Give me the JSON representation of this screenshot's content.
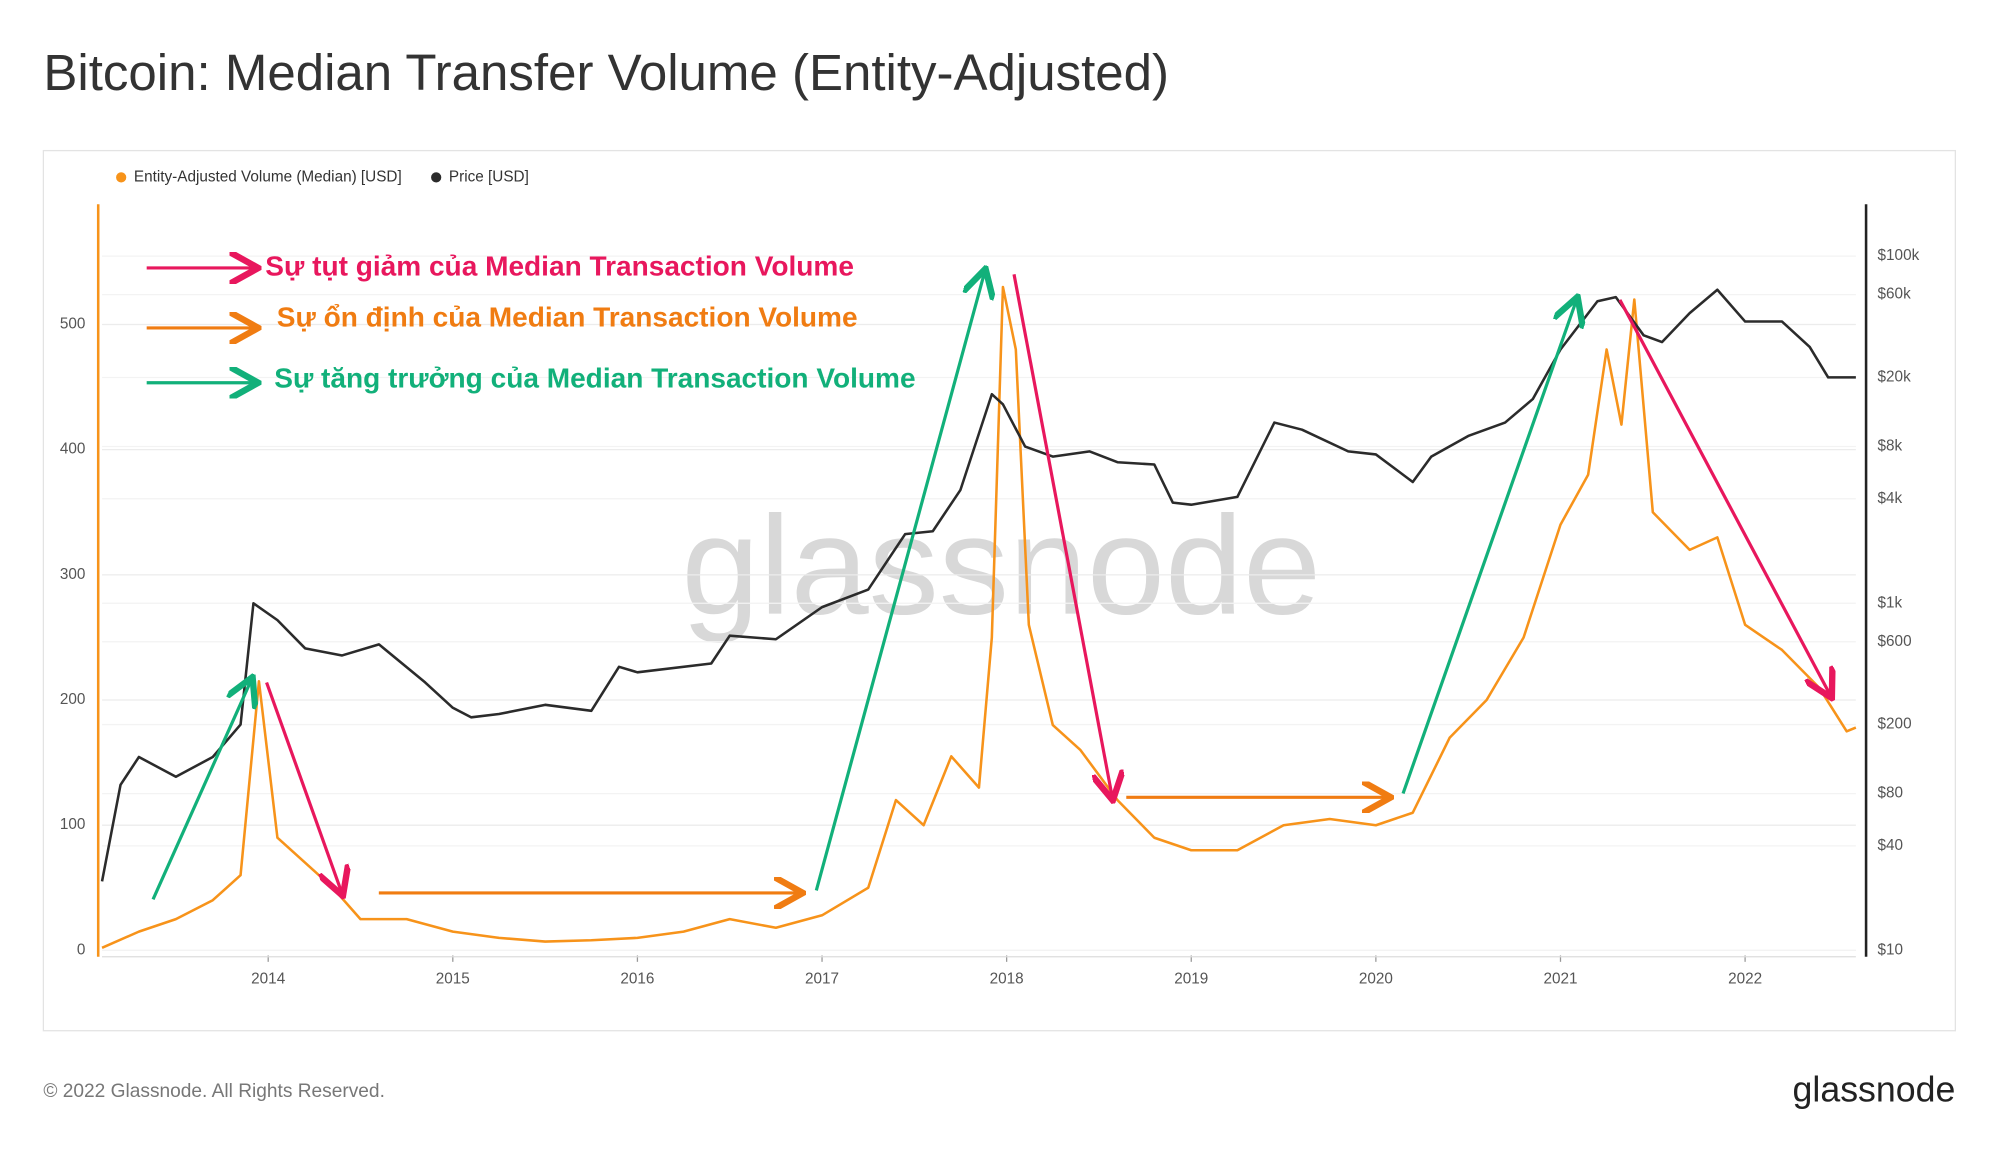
{
  "chart_data": {
    "type": "line",
    "title": "Bitcoin: Median Transfer Volume (Entity-Adjusted)",
    "watermark": "glassnode",
    "footer": "© 2022 Glassnode. All Rights Reserved.",
    "logo": "glassnode",
    "legend": "top-left",
    "grid": true,
    "y2_log": true,
    "xlim": [
      2013.1,
      2022.6
    ],
    "xticks": [
      2014,
      2015,
      2016,
      2017,
      2018,
      2019,
      2020,
      2021,
      2022
    ],
    "ylim": [
      0,
      590
    ],
    "yticks": [
      0,
      100,
      200,
      300,
      400,
      500
    ],
    "y2lim": [
      10,
      180000
    ],
    "y2ticks": [
      {
        "value": 10,
        "label": "$10"
      },
      {
        "value": 40,
        "label": "$40"
      },
      {
        "value": 80,
        "label": "$80"
      },
      {
        "value": 200,
        "label": "$200"
      },
      {
        "value": 600,
        "label": "$600"
      },
      {
        "value": 1000,
        "label": "$1k"
      },
      {
        "value": 4000,
        "label": "$4k"
      },
      {
        "value": 8000,
        "label": "$8k"
      },
      {
        "value": 20000,
        "label": "$20k"
      },
      {
        "value": 60000,
        "label": "$60k"
      },
      {
        "value": 100000,
        "label": "$100k"
      }
    ],
    "series": [
      {
        "name": "Entity-Adjusted Volume (Median) [USD]",
        "color": "#f7931a",
        "x": [
          2013.1,
          2013.3,
          2013.5,
          2013.7,
          2013.85,
          2013.95,
          2014.05,
          2014.2,
          2014.35,
          2014.5,
          2014.75,
          2015.0,
          2015.25,
          2015.5,
          2015.75,
          2016.0,
          2016.25,
          2016.5,
          2016.75,
          2017.0,
          2017.25,
          2017.4,
          2017.55,
          2017.7,
          2017.85,
          2017.92,
          2017.98,
          2018.05,
          2018.12,
          2018.25,
          2018.4,
          2018.6,
          2018.8,
          2019.0,
          2019.25,
          2019.5,
          2019.75,
          2020.0,
          2020.2,
          2020.4,
          2020.6,
          2020.8,
          2021.0,
          2021.15,
          2021.25,
          2021.33,
          2021.4,
          2021.5,
          2021.7,
          2021.85,
          2022.0,
          2022.2,
          2022.4,
          2022.55,
          2022.6
        ],
        "values": [
          2,
          15,
          25,
          40,
          60,
          215,
          90,
          70,
          50,
          25,
          25,
          15,
          10,
          7,
          8,
          10,
          15,
          25,
          18,
          28,
          50,
          120,
          100,
          155,
          130,
          250,
          530,
          480,
          260,
          180,
          160,
          120,
          90,
          80,
          80,
          100,
          105,
          100,
          110,
          170,
          200,
          250,
          340,
          380,
          480,
          420,
          520,
          350,
          320,
          330,
          260,
          240,
          210,
          175,
          178
        ]
      },
      {
        "name": "Price [USD]",
        "color": "#2b2b2b",
        "axis": "y2",
        "x": [
          2013.1,
          2013.2,
          2013.3,
          2013.5,
          2013.7,
          2013.85,
          2013.92,
          2014.05,
          2014.2,
          2014.4,
          2014.6,
          2014.85,
          2015.0,
          2015.1,
          2015.25,
          2015.5,
          2015.75,
          2015.9,
          2016.0,
          2016.4,
          2016.5,
          2016.75,
          2017.0,
          2017.25,
          2017.45,
          2017.6,
          2017.75,
          2017.92,
          2017.98,
          2018.1,
          2018.25,
          2018.45,
          2018.6,
          2018.8,
          2018.9,
          2019.0,
          2019.25,
          2019.45,
          2019.6,
          2019.85,
          2020.0,
          2020.2,
          2020.3,
          2020.5,
          2020.7,
          2020.85,
          2021.0,
          2021.2,
          2021.3,
          2021.45,
          2021.55,
          2021.7,
          2021.85,
          2022.0,
          2022.2,
          2022.35,
          2022.45,
          2022.6
        ],
        "values": [
          25,
          90,
          130,
          100,
          130,
          200,
          1000,
          800,
          550,
          500,
          580,
          350,
          250,
          220,
          230,
          260,
          240,
          430,
          400,
          450,
          650,
          620,
          950,
          1200,
          2500,
          2600,
          4500,
          16000,
          14000,
          8000,
          7000,
          7500,
          6500,
          6300,
          3800,
          3700,
          4100,
          11000,
          10000,
          7500,
          7200,
          5000,
          7000,
          9200,
          11000,
          15000,
          29000,
          55000,
          58000,
          35000,
          32000,
          47000,
          64000,
          42000,
          42000,
          30000,
          20000,
          20000
        ]
      }
    ],
    "annotations": [
      {
        "text": "Sự tụt giảm của Median Transaction Volume",
        "color": "#e8175d"
      },
      {
        "text": "Sự ổn định của Median Transaction Volume",
        "color": "#f07c12"
      },
      {
        "text": "Sự tăng trưởng của Median Transaction Volume",
        "color": "#12b07a"
      }
    ]
  }
}
